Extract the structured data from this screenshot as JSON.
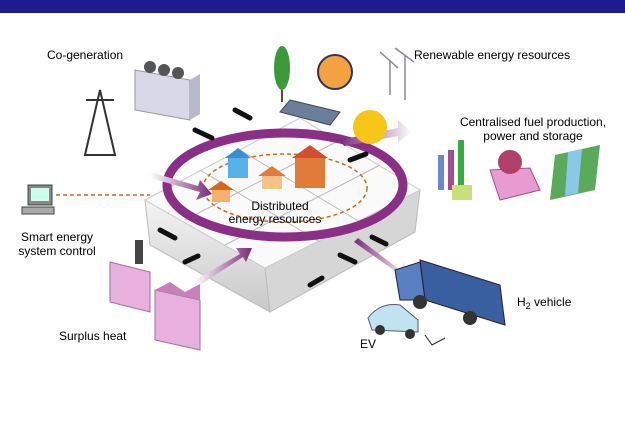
{
  "labels": {
    "cogeneration": "Co-generation",
    "renewable": "Renewable energy resources",
    "centralised": {
      "lines": [
        "Centralised fuel production,",
        "power and storage"
      ]
    },
    "control": {
      "lines": [
        "Smart energy",
        "system control"
      ]
    },
    "distributed": {
      "lines": [
        "Distributed",
        "energy resources"
      ]
    },
    "h2_vehicle": {
      "prefix": "H",
      "sub": "2",
      "suffix": " vehicle"
    },
    "ev": "EV",
    "surplus_heat": "Surplus heat"
  }
}
